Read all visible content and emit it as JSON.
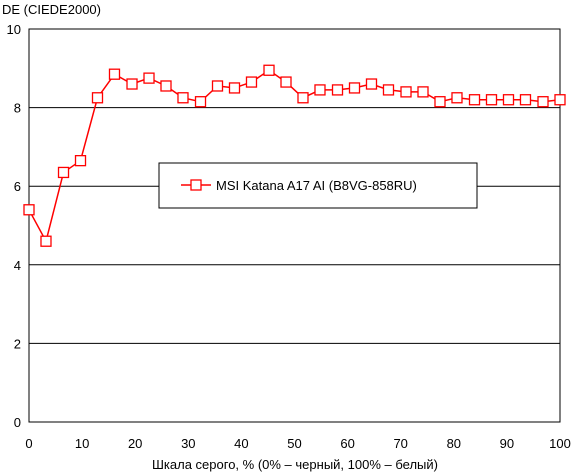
{
  "chart_data": {
    "type": "line",
    "title": "",
    "ylabel": "DE (CIEDE2000)",
    "xlabel": "Шкала серого, % (0% – черный, 100% – белый)",
    "xlim": [
      0,
      100
    ],
    "ylim": [
      0,
      10
    ],
    "x_ticks": [
      "0",
      "10",
      "20",
      "30",
      "40",
      "50",
      "60",
      "70",
      "80",
      "90",
      "100"
    ],
    "y_ticks": [
      "0",
      "2",
      "4",
      "6",
      "8",
      "10"
    ],
    "grid": "horizontal",
    "legend_position": "center",
    "series": [
      {
        "name": "MSI Katana A17 AI (B8VG-858RU)",
        "color": "#ff0000",
        "marker": "square-open",
        "x": [
          0,
          3.2,
          6.5,
          9.7,
          12.9,
          16.1,
          19.4,
          22.6,
          25.8,
          29.0,
          32.3,
          35.5,
          38.7,
          41.9,
          45.2,
          48.4,
          51.6,
          54.8,
          58.1,
          61.3,
          64.5,
          67.7,
          71.0,
          74.2,
          77.4,
          80.6,
          83.9,
          87.1,
          90.3,
          93.5,
          96.8,
          100
        ],
        "y": [
          5.4,
          4.6,
          6.35,
          6.65,
          8.25,
          8.85,
          8.6,
          8.75,
          8.55,
          8.25,
          8.15,
          8.55,
          8.5,
          8.65,
          8.95,
          8.65,
          8.25,
          8.45,
          8.45,
          8.5,
          8.6,
          8.45,
          8.4,
          8.4,
          8.15,
          8.25,
          8.2,
          8.2,
          8.2,
          8.2,
          8.15,
          8.2
        ]
      }
    ]
  }
}
